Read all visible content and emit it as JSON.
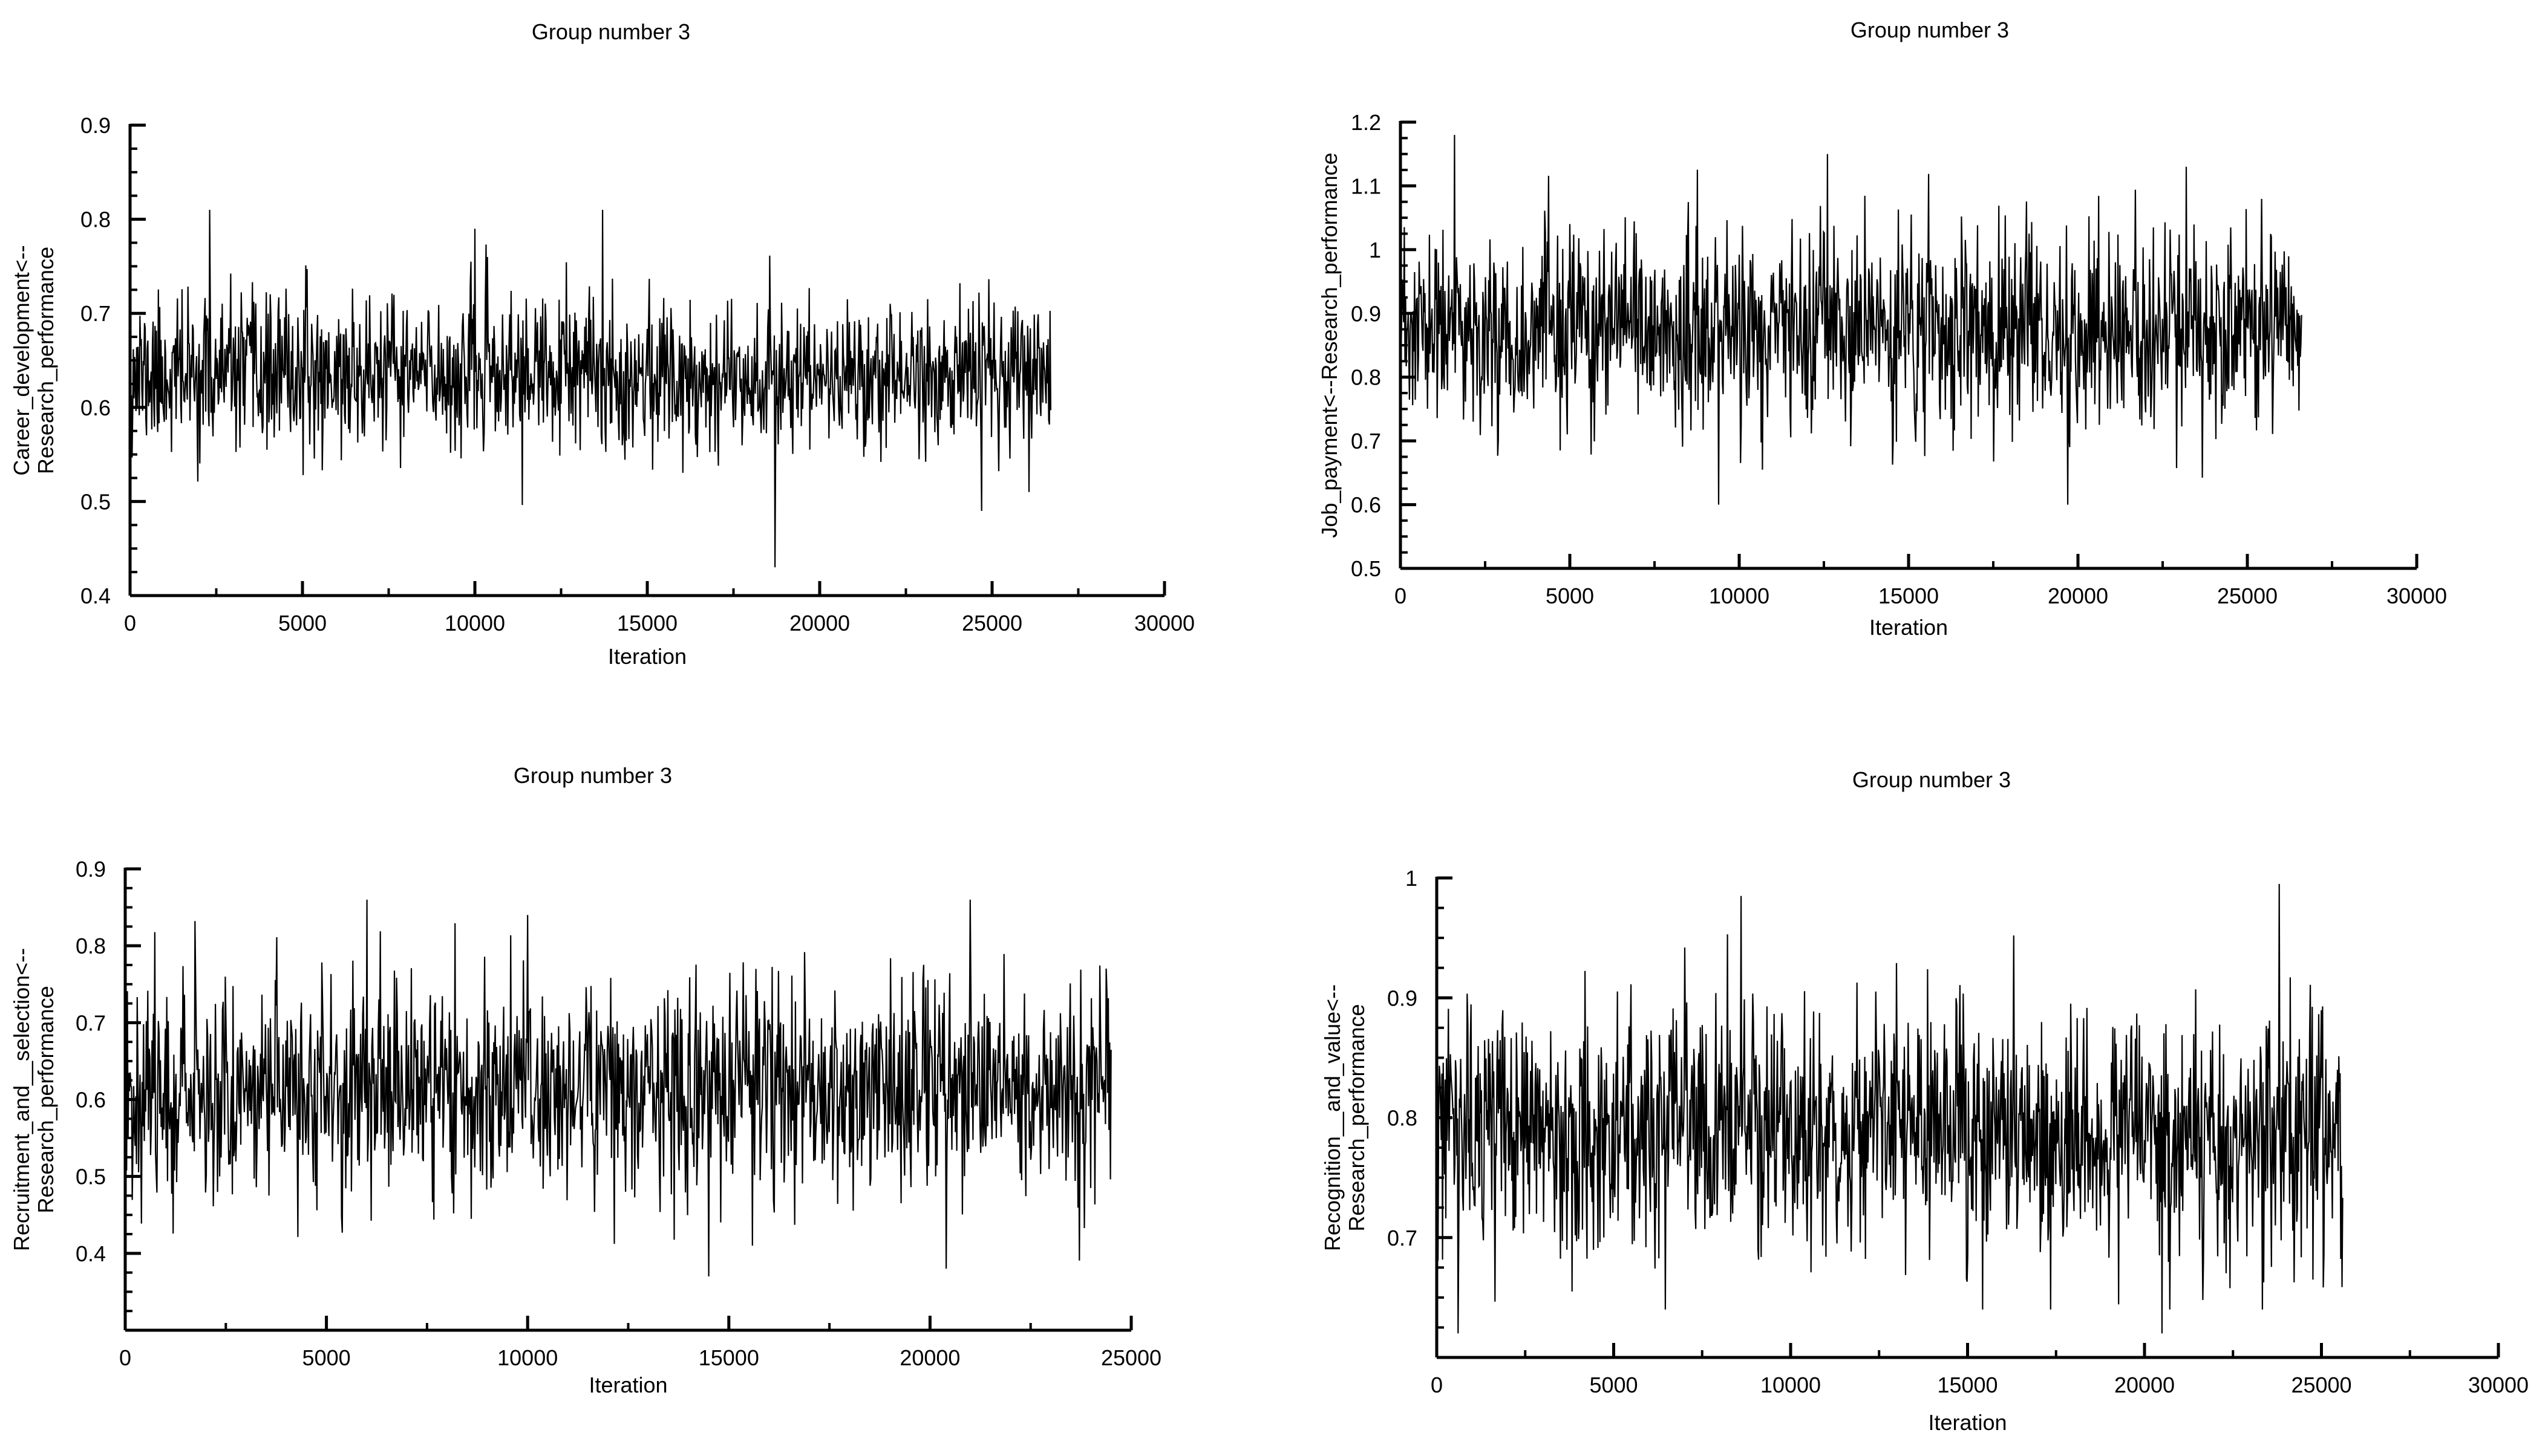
{
  "chart_data": [
    {
      "type": "line",
      "title": "Group number 3",
      "xlabel": "Iteration",
      "ylabel_lines": [
        "Career_development<--",
        "Research_performance"
      ],
      "xlim": [
        0,
        30000
      ],
      "ylim": [
        0.4,
        0.9
      ],
      "xticks": [
        0,
        5000,
        10000,
        15000,
        20000,
        25000,
        30000
      ],
      "yticks": [
        0.4,
        0.5,
        0.6,
        0.7,
        0.8,
        0.9
      ],
      "ytick_labels": [
        "0.4",
        "0.5",
        "0.6",
        "0.7",
        "0.8",
        "0.9"
      ],
      "series": [
        {
          "x_start": 0,
          "x_end": 26700,
          "mean": 0.635,
          "sd": 0.04,
          "min": 0.43,
          "max": 0.81,
          "notable": [
            [
              2300,
              0.81
            ],
            [
              10000,
              0.79
            ],
            [
              13700,
              0.81
            ],
            [
              18700,
              0.43
            ],
            [
              24700,
              0.49
            ]
          ],
          "samples": 1400,
          "seed": 11
        }
      ]
    },
    {
      "type": "line",
      "title": "Group number 3",
      "xlabel": "Iteration",
      "ylabel_lines": [
        "Job_payment<--Research_performance"
      ],
      "xlim": [
        0,
        30000
      ],
      "ylim": [
        0.5,
        1.2
      ],
      "xticks": [
        0,
        5000,
        10000,
        15000,
        20000,
        25000,
        30000
      ],
      "yticks": [
        0.5,
        0.6,
        0.7,
        0.8,
        0.9,
        1.0,
        1.1,
        1.2
      ],
      "ytick_labels": [
        "0.5",
        "0.6",
        "0.7",
        "0.8",
        "0.9",
        "1",
        "1.1",
        "1.2"
      ],
      "series": [
        {
          "x_start": 0,
          "x_end": 26600,
          "mean": 0.87,
          "sd": 0.075,
          "min": 0.6,
          "max": 1.18,
          "notable": [
            [
              1600,
              1.18
            ],
            [
              12600,
              1.15
            ],
            [
              23200,
              1.13
            ],
            [
              9400,
              0.6
            ],
            [
              19700,
              0.6
            ]
          ],
          "samples": 1400,
          "seed": 23
        }
      ]
    },
    {
      "type": "line",
      "title": "Group number 3",
      "xlabel": "Iteration",
      "ylabel_lines": [
        "Recruitment_and__selection<--",
        "Research_performance"
      ],
      "xlim": [
        0,
        25000
      ],
      "ylim": [
        0.3,
        0.9
      ],
      "xticks": [
        0,
        5000,
        10000,
        15000,
        20000,
        25000
      ],
      "yticks": [
        0.4,
        0.5,
        0.6,
        0.7,
        0.8,
        0.9
      ],
      "ytick_labels": [
        "0.4",
        "0.5",
        "0.6",
        "0.7",
        "0.8",
        "0.9"
      ],
      "series": [
        {
          "x_start": 0,
          "x_end": 24500,
          "mean": 0.615,
          "sd": 0.07,
          "min": 0.37,
          "max": 0.86,
          "notable": [
            [
              6000,
              0.86
            ],
            [
              10000,
              0.84
            ],
            [
              21000,
              0.86
            ],
            [
              14500,
              0.37
            ],
            [
              20400,
              0.38
            ]
          ],
          "samples": 1400,
          "seed": 37
        }
      ]
    },
    {
      "type": "line",
      "title": "Group number 3",
      "xlabel": "Iteration",
      "ylabel_lines": [
        "Recognition__and_value<--",
        "Research_performance"
      ],
      "xlim": [
        0,
        30000
      ],
      "ylim": [
        0.6,
        1.0
      ],
      "xticks": [
        0,
        5000,
        10000,
        15000,
        20000,
        25000,
        30000
      ],
      "yticks": [
        0.7,
        0.8,
        0.9,
        1.0
      ],
      "ytick_labels": [
        "0.7",
        "0.8",
        "0.9",
        "1"
      ],
      "series": [
        {
          "x_start": 0,
          "x_end": 25600,
          "mean": 0.79,
          "sd": 0.05,
          "min": 0.62,
          "max": 0.995,
          "notable": [
            [
              8600,
              0.985
            ],
            [
              23800,
              0.995
            ],
            [
              600,
              0.62
            ],
            [
              20500,
              0.62
            ]
          ],
          "samples": 1400,
          "seed": 53
        }
      ]
    }
  ]
}
